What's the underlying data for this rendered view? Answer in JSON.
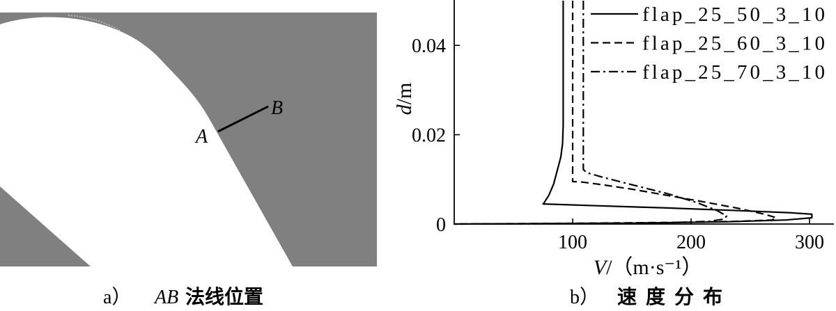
{
  "colors": {
    "solid_region": "#808080",
    "flow_region": "#ffffff"
  },
  "panel_a": {
    "point_a": "A",
    "point_b": "B",
    "caption_tag": "a）",
    "caption_ab": "AB",
    "caption_title": "法线位置"
  },
  "panel_b": {
    "caption_tag": "b）",
    "caption_title": "速度分布"
  },
  "chart_data": {
    "type": "line",
    "xlabel": {
      "symbol": "V",
      "unit": "/（m·s⁻¹）"
    },
    "ylabel": {
      "symbol": "d",
      "unit": "/m"
    },
    "xlim": [
      0,
      320
    ],
    "ylim": [
      0,
      0.05
    ],
    "xticks": [
      100,
      200,
      300
    ],
    "yticks": [
      0,
      0.02,
      0.04
    ],
    "grid": false,
    "legend_position": "top-right",
    "series": [
      {
        "name": "flap_25_50_3_10",
        "style": "solid",
        "color": "#000000",
        "x": [
          92,
          92,
          91.5,
          90,
          87,
          84,
          80,
          76,
          75,
          120,
          180,
          240,
          285,
          302,
          302,
          280,
          230,
          150,
          0
        ],
        "y": [
          0.05,
          0.022,
          0.018,
          0.015,
          0.012,
          0.009,
          0.0065,
          0.0048,
          0.0045,
          0.0041,
          0.0036,
          0.003,
          0.0025,
          0.0022,
          0.0014,
          0.0009,
          0.0005,
          0.0002,
          0
        ]
      },
      {
        "name": "flap_25_60_3_10",
        "style": "dashed",
        "color": "#000000",
        "x": [
          100,
          100,
          108,
          125,
          150,
          180,
          210,
          240,
          262,
          272,
          268,
          240,
          200,
          120,
          0
        ],
        "y": [
          0.05,
          0.0095,
          0.0094,
          0.0088,
          0.0078,
          0.0064,
          0.005,
          0.0035,
          0.0022,
          0.0014,
          0.0009,
          0.0006,
          0.0004,
          0.0002,
          0
        ]
      },
      {
        "name": "flap_25_70_3_10",
        "style": "dash-dot",
        "color": "#000000",
        "x": [
          109,
          109,
          112,
          125,
          150,
          180,
          205,
          222,
          230,
          228,
          215,
          180,
          100,
          0
        ],
        "y": [
          0.05,
          0.0122,
          0.0115,
          0.0105,
          0.0088,
          0.0068,
          0.0048,
          0.003,
          0.0018,
          0.0011,
          0.0006,
          0.0003,
          0.0001,
          0
        ]
      }
    ]
  }
}
